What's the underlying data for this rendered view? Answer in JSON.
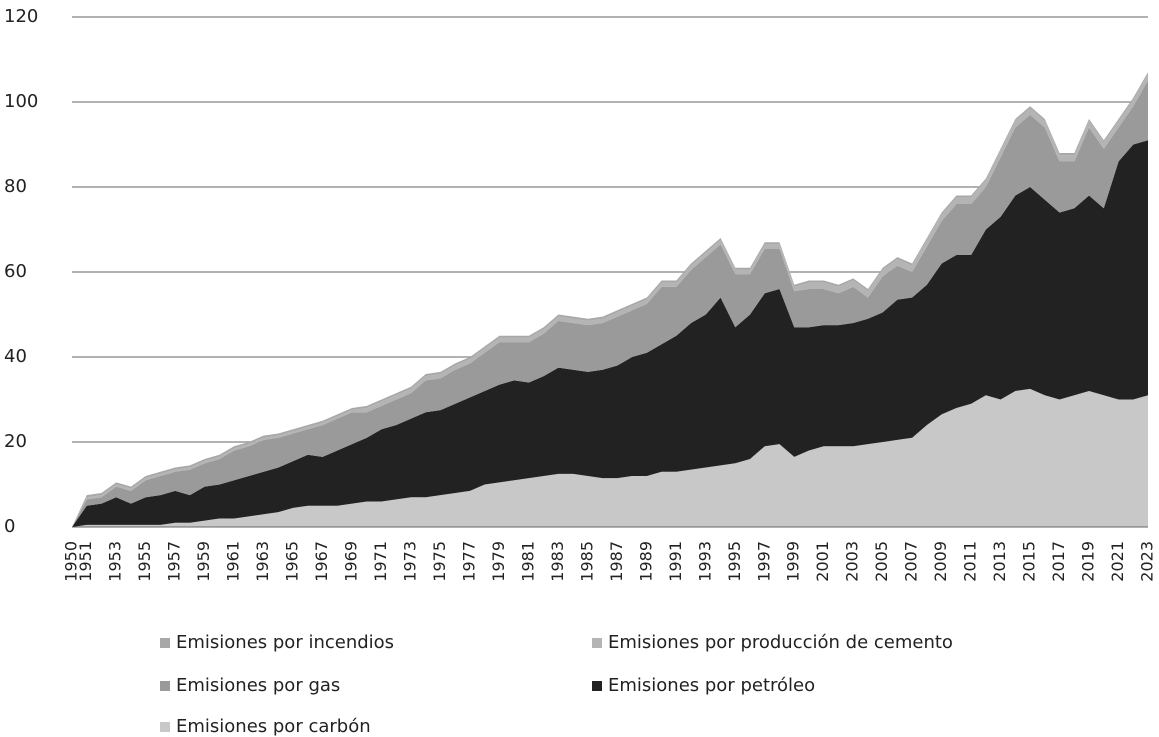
{
  "chart_data": {
    "type": "stacked_area",
    "categories": [
      "1950",
      "1951",
      null,
      "1953",
      null,
      "1955",
      null,
      "1957",
      null,
      "1959",
      null,
      "1961",
      null,
      "1963",
      null,
      "1965",
      null,
      "1967",
      null,
      "1969",
      null,
      "1971",
      null,
      "1973",
      null,
      "1975",
      null,
      "1977",
      null,
      "1979",
      null,
      "1981",
      null,
      "1983",
      null,
      "1985",
      null,
      "1987",
      null,
      "1989",
      null,
      "1991",
      null,
      "1993",
      null,
      "1995",
      null,
      "1997",
      null,
      "1999",
      null,
      "2001",
      null,
      "2003",
      null,
      "2005",
      null,
      "2007",
      null,
      "2009",
      null,
      "2011",
      null,
      "2013",
      null,
      "2015",
      null,
      "2017",
      null,
      "2019",
      null,
      "2021",
      null,
      "2023"
    ],
    "series": [
      {
        "name": "Emisiones por incendios",
        "color": "#a8a8a8",
        "values": [
          0,
          0.5,
          0.5,
          0.5,
          0.5,
          0.5,
          0.5,
          0.5,
          0.5,
          0.5,
          0.5,
          0.5,
          0.5,
          0.5,
          0.5,
          0.5,
          0.5,
          0.5,
          0.5,
          0.5,
          0.5,
          0.5,
          0.5,
          0.5,
          0.5,
          0.5,
          0.5,
          0.5,
          0.5,
          0.5,
          0.5,
          0.5,
          0.5,
          0.5,
          0.5,
          0.5,
          0.5,
          0.5,
          0.5,
          0.5,
          0.5,
          0.5,
          0.5,
          0.5,
          0.5,
          0.5,
          0.5,
          0.5,
          0.5,
          0.5,
          0.5,
          0.5,
          0.5,
          0.5,
          0.5,
          0.5,
          0.5,
          0.5,
          0.5,
          0.5,
          0.5,
          0.5,
          0.5,
          0.5,
          0.5,
          0.5,
          0.5,
          0.5,
          0.5,
          0.5,
          0.5,
          0.5,
          0.5,
          0.5
        ]
      },
      {
        "name": "Emisiones por producción de cemento",
        "color": "#b4b4b4",
        "values": [
          0,
          0.5,
          0.5,
          0.5,
          0.5,
          0.5,
          0.5,
          0.5,
          0.5,
          0.5,
          0.5,
          0.5,
          0.5,
          0.5,
          0.5,
          0.5,
          0.5,
          0.5,
          0.5,
          0.5,
          1,
          1,
          1,
          1,
          1,
          1,
          1,
          1,
          1,
          1,
          1,
          1,
          1,
          1,
          1,
          1,
          1,
          1,
          1,
          1,
          1,
          1,
          1,
          1,
          1,
          1,
          1,
          1,
          1,
          1,
          1.5,
          1.5,
          1.5,
          1.5,
          1.5,
          1.5,
          1.5,
          1.5,
          1.5,
          1.5,
          1.5,
          1.5,
          1.5,
          1.5,
          1.5,
          1.5,
          1.5,
          1.5,
          1.5,
          1.5,
          1.5,
          1.5,
          1.5,
          1.5
        ]
      },
      {
        "name": "Emisiones por gas",
        "color": "#9a9a9a",
        "values": [
          0,
          1.5,
          1.5,
          2.5,
          3,
          4,
          4.5,
          4.5,
          6,
          5.5,
          6,
          7,
          7,
          7.5,
          7,
          6.5,
          6,
          7.5,
          7.5,
          7.5,
          6,
          5.5,
          6,
          6,
          7.5,
          7.5,
          8,
          8,
          9,
          10,
          9,
          9.5,
          10,
          11,
          11,
          11,
          11,
          11.5,
          11,
          11.5,
          13.5,
          11.5,
          12.5,
          13.5,
          12.5,
          12.5,
          9.5,
          10.5,
          9.5,
          8.5,
          9,
          8.5,
          7.5,
          8.5,
          5,
          8.5,
          8,
          6,
          9,
          10,
          12,
          12,
          10,
          14,
          16,
          17,
          17,
          12,
          11,
          16,
          14,
          8,
          9,
          14
        ]
      },
      {
        "name": "Emisiones por petróleo",
        "color": "#222222",
        "values": [
          0,
          4.5,
          5,
          6.5,
          5,
          6.5,
          7,
          7.5,
          6.5,
          8,
          8,
          9,
          9.5,
          10,
          10.5,
          11,
          12,
          11.5,
          13,
          14,
          15,
          17,
          17.5,
          18.5,
          20,
          20,
          21,
          22,
          22,
          23,
          23.5,
          22.5,
          23.5,
          25,
          24.5,
          24.5,
          25.5,
          26.5,
          28,
          29,
          30,
          32,
          34.5,
          36,
          39.5,
          32,
          34,
          36,
          36.5,
          30.5,
          29,
          28.5,
          28.5,
          29,
          29.5,
          30.5,
          33,
          33,
          33,
          35.5,
          36,
          35,
          39,
          43,
          46,
          47.5,
          46,
          44,
          44,
          46,
          44,
          56,
          60,
          60
        ]
      },
      {
        "name": "Emisiones por carbón",
        "color": "#c8c8c8",
        "values": [
          0,
          0.5,
          0.5,
          0.5,
          0.5,
          0.5,
          0.5,
          1,
          1,
          1.5,
          2,
          2,
          2.5,
          3,
          3.5,
          4.5,
          5,
          5,
          5,
          5.5,
          6,
          6,
          6.5,
          7,
          7,
          7.5,
          8,
          8.5,
          10,
          10.5,
          11,
          11.5,
          12,
          12.5,
          12.5,
          12,
          11.5,
          11.5,
          12,
          12,
          13,
          13,
          13.5,
          14,
          14.5,
          15,
          16,
          19,
          19.5,
          16.5,
          18,
          19,
          19,
          19,
          19.5,
          20,
          20.5,
          21,
          24,
          26.5,
          28,
          29,
          31,
          30,
          32,
          32.5,
          31,
          30,
          31,
          32,
          31,
          30,
          30,
          31
        ]
      }
    ],
    "ylim": [
      0,
      120
    ],
    "yticks": [
      0,
      20,
      40,
      60,
      80,
      100,
      120
    ],
    "grid": true,
    "legend": "bottom"
  }
}
